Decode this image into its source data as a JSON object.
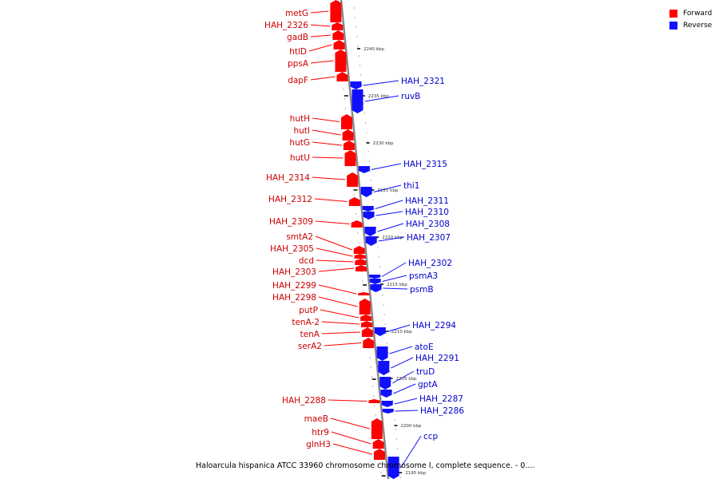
{
  "caption": "Haloarcula hispanica ATCC 33960 chromosome chromosome I, complete sequence. - 0....",
  "legend": [
    {
      "label": "Forward",
      "color": "#ff0000"
    },
    {
      "label": "Reverse",
      "color": "#1010ff"
    }
  ],
  "scale_labels": [
    "2240 kbp",
    "2235 kbp",
    "2230 kbp",
    "2225 kbp",
    "2220 kbp",
    "2215 kbp",
    "2210 kbp",
    "2205 kbp",
    "2200 kbp",
    "2195 kbp"
  ],
  "forward_genes": [
    "metG",
    "HAH_2326",
    "gadB",
    "htlD",
    "ppsA",
    "dapF",
    "hutH",
    "hutI",
    "hutG",
    "hutU",
    "HAH_2314",
    "HAH_2312",
    "HAH_2309",
    "smtA2",
    "HAH_2305",
    "dcd",
    "HAH_2303",
    "HAH_2299",
    "HAH_2298",
    "putP",
    "tenA-2",
    "tenA",
    "serA2",
    "HAH_2288",
    "maeB",
    "htr9",
    "glnH3"
  ],
  "reverse_genes": [
    "HAH_2321",
    "ruvB",
    "HAH_2315",
    "thi1",
    "HAH_2311",
    "HAH_2310",
    "HAH_2308",
    "HAH_2307",
    "HAH_2302",
    "psmA3",
    "psmB",
    "HAH_2294",
    "atoE",
    "HAH_2291",
    "truD",
    "gptA",
    "HAH_2287",
    "HAH_2286",
    "ccp"
  ]
}
